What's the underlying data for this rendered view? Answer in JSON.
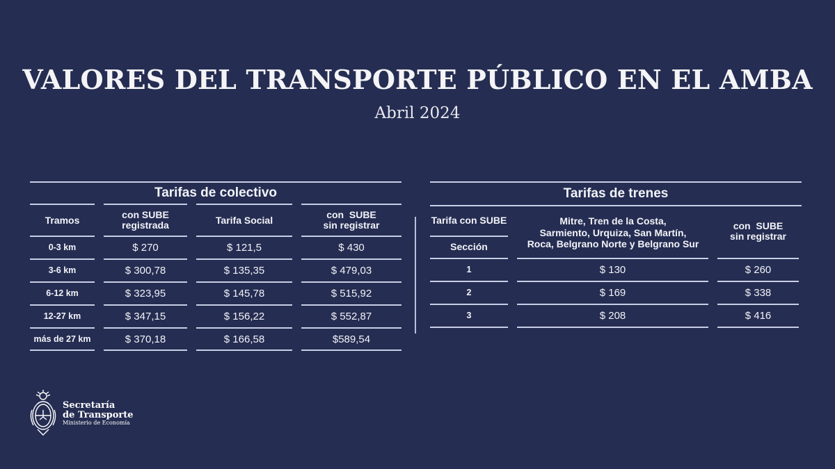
{
  "header": {
    "title": "VALORES DEL TRANSPORTE PÚBLICO EN EL AMBA",
    "subtitle": "Abril 2024"
  },
  "colectivo": {
    "title": "Tarifas de colectivo",
    "columns": [
      "Tramos",
      "con SUBE\nregistrada",
      "Tarifa Social",
      "con  SUBE\nsin registrar"
    ],
    "column_lines": [
      [
        "Tramos"
      ],
      [
        "con SUBE",
        "registrada"
      ],
      [
        "Tarifa Social"
      ],
      [
        "con  SUBE",
        "sin registrar"
      ]
    ],
    "rows": [
      [
        "0-3 km",
        "$ 270",
        "$ 121,5",
        "$ 430"
      ],
      [
        "3-6 km",
        "$ 300,78",
        "$ 135,35",
        "$ 479,03"
      ],
      [
        "6-12 km",
        "$ 323,95",
        "$ 145,78",
        "$ 515,92"
      ],
      [
        "12-27 km",
        "$ 347,15",
        "$ 156,22",
        "$ 552,87"
      ],
      [
        "más de 27 km",
        "$ 370,18",
        "$ 166,58",
        "$589,54"
      ]
    ]
  },
  "trenes": {
    "title": "Tarifas de trenes",
    "header_left_top": "Tarifa con SUBE",
    "header_left_bottom": "Sección",
    "header_mid": [
      "Mitre, Tren de la Costa,",
      "Sarmiento, Urquiza, San Martín,",
      "Roca, Belgrano Norte y Belgrano Sur"
    ],
    "header_right": [
      "con  SUBE",
      "sin registrar"
    ],
    "rows": [
      [
        "1",
        "$ 130",
        "$ 260"
      ],
      [
        "2",
        "$ 169",
        "$ 338"
      ],
      [
        "3",
        "$ 208",
        "$ 416"
      ]
    ]
  },
  "footer": {
    "logo_line1": "Secretaría",
    "logo_line2": "de Transporte",
    "logo_line3": "Ministerio de Economía",
    "logo_icon": "argentina-coat-of-arms-icon"
  },
  "colors": {
    "background": "#252d52",
    "rules": "#c9cfe6",
    "text": "#ffffff"
  }
}
